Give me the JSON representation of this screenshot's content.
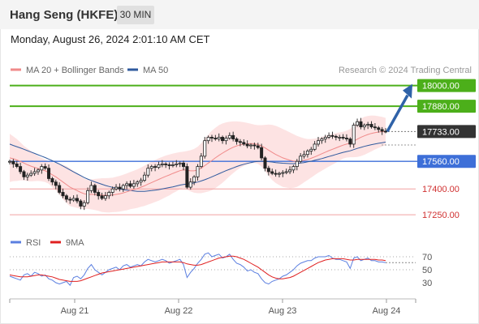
{
  "header": {
    "title": "Hang Seng (HKFE)",
    "timeframe": "30 MIN",
    "datetime": "Monday, August 26, 2024 2:01:10 AM CET"
  },
  "colors": {
    "price": "#333333",
    "ma20": "#f08a8a",
    "ma50": "#2f5a9e",
    "bands": "#fcd9d9",
    "resistance": "#4caf1a",
    "support_blue": "#3d6fd8",
    "support_red": "#f2a0a0",
    "arrow": "#2f62a8",
    "rsi": "#5b7fe0",
    "rsi_ma": "#e02020",
    "current": "#333333"
  },
  "chart_data": [
    {
      "type": "candlestick",
      "title": "",
      "legend": [
        {
          "name": "MA 20 + Bollinger Bands",
          "color": "#f08a8a"
        },
        {
          "name": "MA 50",
          "color": "#2f5a9e"
        }
      ],
      "legend_placement": "top-left",
      "source": "Research © 2024 Trading Central",
      "x_ticks": [
        "Aug 21",
        "Aug 22",
        "Aug 23",
        "Aug 24"
      ],
      "ylim": [
        17180,
        18050
      ],
      "levels": [
        {
          "value": 18000,
          "label": "18000.00",
          "kind": "resistance"
        },
        {
          "value": 17880,
          "label": "17880.00",
          "kind": "resistance"
        },
        {
          "value": 17733,
          "label": "17733.00",
          "kind": "current"
        },
        {
          "value": 17560,
          "label": "17560.00",
          "kind": "pivot"
        },
        {
          "value": 17400,
          "label": "17400.00",
          "kind": "support"
        },
        {
          "value": 17250,
          "label": "17250.00",
          "kind": "support"
        }
      ],
      "close": [
        17560,
        17545,
        17530,
        17500,
        17470,
        17480,
        17490,
        17500,
        17510,
        17530,
        17520,
        17460,
        17440,
        17420,
        17380,
        17360,
        17340,
        17335,
        17345,
        17330,
        17300,
        17320,
        17390,
        17420,
        17380,
        17360,
        17345,
        17360,
        17380,
        17400,
        17410,
        17400,
        17420,
        17430,
        17415,
        17430,
        17440,
        17450,
        17480,
        17520,
        17530,
        17525,
        17540,
        17545,
        17540,
        17535,
        17540,
        17545,
        17550,
        17530,
        17410,
        17440,
        17470,
        17530,
        17590,
        17680,
        17700,
        17695,
        17690,
        17700,
        17680,
        17695,
        17710,
        17690,
        17675,
        17670,
        17660,
        17650,
        17655,
        17650,
        17640,
        17580,
        17520,
        17500,
        17490,
        17485,
        17490,
        17495,
        17500,
        17510,
        17530,
        17560,
        17590,
        17600,
        17620,
        17630,
        17660,
        17680,
        17690,
        17700,
        17710,
        17705,
        17700,
        17700,
        17695,
        17690,
        17660,
        17770,
        17790,
        17760,
        17770,
        17775,
        17760,
        17755,
        17745,
        17735,
        17733
      ],
      "ma20": [
        17580,
        17575,
        17568,
        17560,
        17550,
        17540,
        17532,
        17525,
        17518,
        17512,
        17505,
        17495,
        17482,
        17470,
        17455,
        17440,
        17425,
        17410,
        17400,
        17390,
        17380,
        17372,
        17368,
        17368,
        17368,
        17366,
        17364,
        17363,
        17363,
        17365,
        17368,
        17372,
        17377,
        17383,
        17390,
        17396,
        17402,
        17410,
        17418,
        17428,
        17437,
        17446,
        17455,
        17464,
        17473,
        17481,
        17490,
        17498,
        17506,
        17511,
        17508,
        17505,
        17505,
        17510,
        17520,
        17535,
        17550,
        17565,
        17580,
        17595,
        17608,
        17620,
        17632,
        17642,
        17650,
        17656,
        17660,
        17662,
        17663,
        17662,
        17658,
        17650,
        17638,
        17625,
        17612,
        17600,
        17590,
        17580,
        17573,
        17566,
        17562,
        17560,
        17562,
        17566,
        17571,
        17578,
        17586,
        17595,
        17604,
        17613,
        17622,
        17630,
        17638,
        17646,
        17654,
        17660,
        17666,
        17677,
        17689,
        17699,
        17708,
        17716,
        17722,
        17727,
        17730,
        17732,
        17733
      ],
      "bb_upper": [
        17720,
        17705,
        17690,
        17670,
        17650,
        17635,
        17620,
        17605,
        17590,
        17580,
        17570,
        17560,
        17555,
        17550,
        17545,
        17540,
        17532,
        17520,
        17505,
        17490,
        17475,
        17460,
        17452,
        17455,
        17458,
        17460,
        17462,
        17462,
        17463,
        17465,
        17470,
        17476,
        17482,
        17490,
        17498,
        17506,
        17514,
        17524,
        17535,
        17547,
        17558,
        17568,
        17578,
        17586,
        17594,
        17600,
        17605,
        17610,
        17614,
        17616,
        17620,
        17625,
        17632,
        17645,
        17665,
        17690,
        17715,
        17738,
        17755,
        17770,
        17780,
        17786,
        17790,
        17792,
        17792,
        17790,
        17787,
        17783,
        17778,
        17773,
        17770,
        17770,
        17772,
        17774,
        17772,
        17766,
        17758,
        17748,
        17738,
        17728,
        17718,
        17708,
        17700,
        17694,
        17690,
        17690,
        17692,
        17696,
        17702,
        17708,
        17714,
        17719,
        17724,
        17728,
        17732,
        17738,
        17748,
        17770,
        17792,
        17808,
        17818,
        17824,
        17826,
        17825,
        17822,
        17818,
        17812
      ],
      "bb_lower": [
        17440,
        17445,
        17446,
        17450,
        17450,
        17445,
        17444,
        17445,
        17446,
        17444,
        17440,
        17430,
        17409,
        17390,
        17365,
        17340,
        17318,
        17300,
        17295,
        17290,
        17285,
        17284,
        17284,
        17281,
        17278,
        17272,
        17266,
        17264,
        17263,
        17265,
        17266,
        17268,
        17272,
        17276,
        17282,
        17286,
        17290,
        17296,
        17301,
        17309,
        17316,
        17324,
        17332,
        17342,
        17352,
        17362,
        17375,
        17386,
        17398,
        17406,
        17396,
        17385,
        17378,
        17375,
        17375,
        17380,
        17385,
        17392,
        17405,
        17420,
        17436,
        17454,
        17474,
        17492,
        17508,
        17522,
        17533,
        17541,
        17548,
        17551,
        17546,
        17530,
        17504,
        17476,
        17452,
        17434,
        17422,
        17412,
        17408,
        17404,
        17406,
        17412,
        17424,
        17438,
        17452,
        17466,
        17480,
        17494,
        17506,
        17518,
        17530,
        17541,
        17552,
        17564,
        17576,
        17582,
        17584,
        17584,
        17586,
        17590,
        17598,
        17608,
        17618,
        17629,
        17638,
        17646,
        17654
      ],
      "ma50": [
        17660,
        17652,
        17645,
        17638,
        17630,
        17622,
        17614,
        17606,
        17598,
        17590,
        17582,
        17573,
        17564,
        17554,
        17544,
        17533,
        17522,
        17510,
        17499,
        17488,
        17477,
        17466,
        17457,
        17449,
        17441,
        17434,
        17427,
        17420,
        17414,
        17409,
        17404,
        17400,
        17396,
        17393,
        17390,
        17388,
        17386,
        17386,
        17386,
        17388,
        17390,
        17393,
        17396,
        17400,
        17404,
        17408,
        17412,
        17417,
        17422,
        17426,
        17428,
        17431,
        17435,
        17440,
        17446,
        17453,
        17461,
        17470,
        17479,
        17488,
        17497,
        17506,
        17514,
        17522,
        17530,
        17537,
        17543,
        17548,
        17553,
        17557,
        17560,
        17561,
        17560,
        17558,
        17556,
        17553,
        17551,
        17549,
        17548,
        17547,
        17547,
        17548,
        17550,
        17553,
        17557,
        17561,
        17566,
        17571,
        17576,
        17582,
        17588,
        17594,
        17600,
        17606,
        17612,
        17617,
        17621,
        17628,
        17635,
        17641,
        17647,
        17652,
        17657,
        17661,
        17665,
        17668,
        17672
      ],
      "forecast_target": 18000
    },
    {
      "type": "line",
      "legend": [
        {
          "name": "RSI",
          "color": "#5b7fe0"
        },
        {
          "name": "9MA",
          "color": "#e02020"
        }
      ],
      "y_ticks": [
        70,
        50,
        30
      ],
      "ylim": [
        10,
        85
      ],
      "rsi": [
        40,
        38,
        36,
        34,
        42,
        44,
        40,
        46,
        44,
        40,
        42,
        36,
        34,
        30,
        28,
        30,
        32,
        26,
        38,
        40,
        36,
        42,
        52,
        58,
        50,
        46,
        42,
        46,
        50,
        52,
        54,
        50,
        56,
        58,
        54,
        56,
        58,
        56,
        62,
        66,
        64,
        62,
        64,
        66,
        64,
        60,
        62,
        64,
        66,
        58,
        38,
        46,
        52,
        60,
        66,
        74,
        76,
        70,
        72,
        74,
        68,
        70,
        74,
        66,
        60,
        58,
        54,
        48,
        50,
        46,
        44,
        36,
        30,
        28,
        32,
        34,
        36,
        40,
        42,
        46,
        50,
        56,
        60,
        62,
        64,
        64,
        68,
        70,
        70,
        70,
        72,
        68,
        66,
        66,
        64,
        62,
        52,
        68,
        70,
        64,
        66,
        68,
        64,
        64,
        62,
        62,
        61
      ],
      "rsi_ma": [
        42,
        41,
        40,
        39,
        39,
        39,
        40,
        41,
        42,
        42,
        41,
        40,
        39,
        37,
        35,
        34,
        33,
        32,
        32,
        32,
        33,
        35,
        37,
        39,
        41,
        43,
        45,
        46,
        47,
        48,
        49,
        50,
        51,
        52,
        53,
        54,
        55,
        56,
        57,
        58,
        59,
        60,
        61,
        62,
        62,
        62,
        62,
        62,
        62,
        61,
        59,
        58,
        57,
        57,
        58,
        60,
        62,
        64,
        66,
        68,
        69,
        70,
        71,
        71,
        70,
        68,
        66,
        63,
        60,
        57,
        54,
        50,
        46,
        42,
        39,
        37,
        36,
        36,
        37,
        38,
        40,
        43,
        46,
        49,
        52,
        55,
        58,
        61,
        63,
        65,
        66,
        67,
        67,
        67,
        67,
        66,
        65,
        65,
        66,
        66,
        66,
        66,
        66,
        66,
        65,
        65,
        64
      ]
    }
  ]
}
